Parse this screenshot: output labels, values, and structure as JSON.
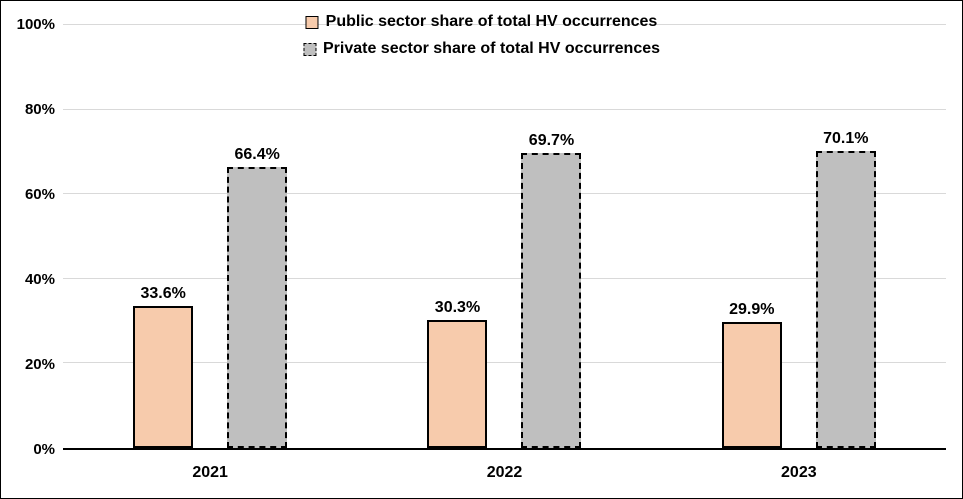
{
  "chart_data": {
    "type": "bar",
    "categories": [
      "2021",
      "2022",
      "2023"
    ],
    "series": [
      {
        "name": "Public sector share of total HV occurrences",
        "values": [
          33.6,
          30.3,
          29.9
        ],
        "value_labels": [
          "33.6%",
          "30.3%",
          "29.9%"
        ],
        "fill": "#F7CBAC",
        "border_style": "solid"
      },
      {
        "name": "Private sector share of total HV occurrences",
        "values": [
          66.4,
          69.7,
          70.1
        ],
        "value_labels": [
          "66.4%",
          "69.7%",
          "70.1%"
        ],
        "fill": "#BFBFBF",
        "border_style": "dashed"
      }
    ],
    "title": "",
    "xlabel": "",
    "ylabel": "",
    "ylim": [
      0,
      100
    ],
    "y_ticks": [
      "0%",
      "20%",
      "40%",
      "60%",
      "80%",
      "100%"
    ],
    "grid": true,
    "legend_position": "top-center",
    "colors": {
      "bar_border": "#000000",
      "gridline": "#D9D9D9",
      "axis": "#000000",
      "text": "#000000",
      "background": "#FFFFFF"
    }
  }
}
